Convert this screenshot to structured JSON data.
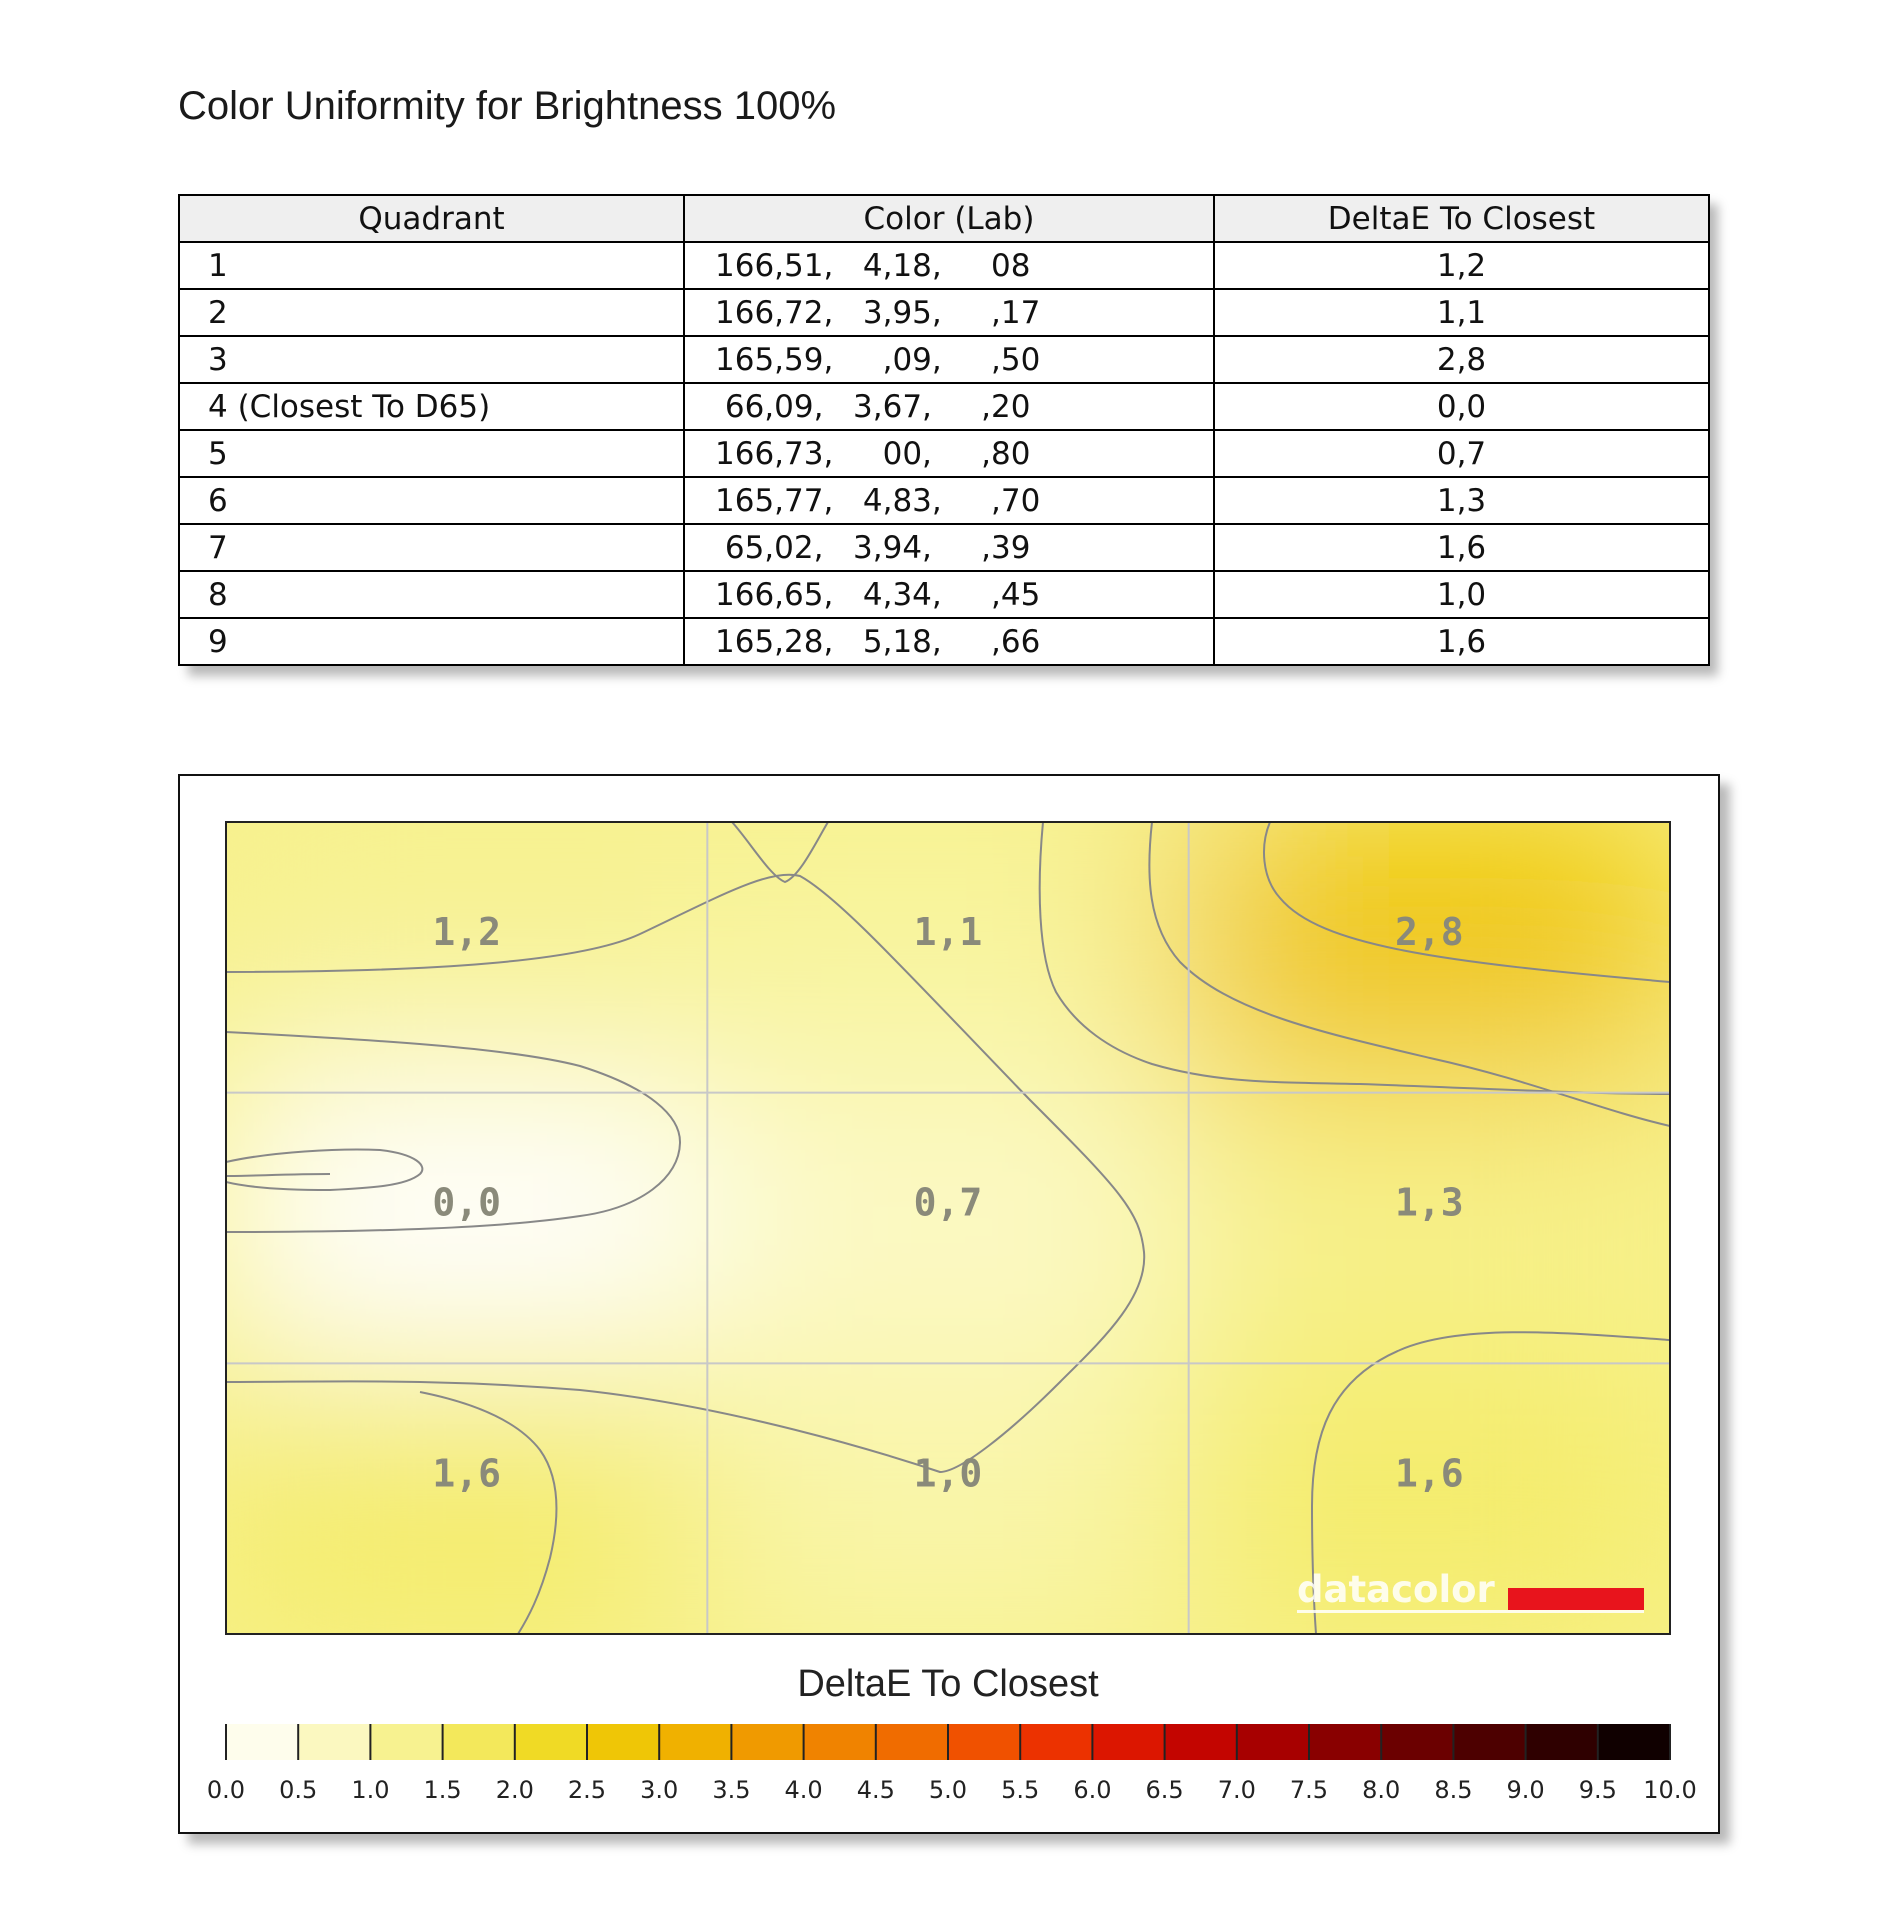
{
  "title": "Color Uniformity for Brightness 100%",
  "table": {
    "headers": [
      "Quadrant",
      "Color (Lab)",
      "DeltaE To Closest"
    ],
    "rows": [
      {
        "quadrant": "1",
        "lab": "166,51,   4,18,     08",
        "deltae": "1,2"
      },
      {
        "quadrant": "2",
        "lab": "166,72,   3,95,     ,17",
        "deltae": "1,1"
      },
      {
        "quadrant": "3",
        "lab": "165,59,     ,09,     ,50",
        "deltae": "2,8"
      },
      {
        "quadrant": "4 (Closest To D65)",
        "lab": " 66,09,   3,67,     ,20",
        "deltae": "0,0"
      },
      {
        "quadrant": "5",
        "lab": "166,73,     00,     ,80",
        "deltae": "0,7"
      },
      {
        "quadrant": "6",
        "lab": "165,77,   4,83,     ,70",
        "deltae": "1,3"
      },
      {
        "quadrant": "7",
        "lab": " 65,02,   3,94,     ,39",
        "deltae": "1,6"
      },
      {
        "quadrant": "8",
        "lab": "166,65,   4,34,     ,45",
        "deltae": "1,0"
      },
      {
        "quadrant": "9",
        "lab": "165,28,   5,18,     ,66",
        "deltae": "1,6"
      }
    ]
  },
  "chart_data": {
    "type": "heatmap",
    "grid": {
      "rows": 3,
      "cols": 3
    },
    "cells": [
      {
        "row": 0,
        "col": 0,
        "value": 1.2,
        "label": "1,2"
      },
      {
        "row": 0,
        "col": 1,
        "value": 1.1,
        "label": "1,1"
      },
      {
        "row": 0,
        "col": 2,
        "value": 2.8,
        "label": "2,8"
      },
      {
        "row": 1,
        "col": 0,
        "value": 0.0,
        "label": "0,0"
      },
      {
        "row": 1,
        "col": 1,
        "value": 0.7,
        "label": "0,7"
      },
      {
        "row": 1,
        "col": 2,
        "value": 1.3,
        "label": "1,3"
      },
      {
        "row": 2,
        "col": 0,
        "value": 1.6,
        "label": "1,6"
      },
      {
        "row": 2,
        "col": 1,
        "value": 1.0,
        "label": "1,0"
      },
      {
        "row": 2,
        "col": 2,
        "value": 1.6,
        "label": "1,6"
      }
    ],
    "logo_text": "datacolor",
    "colorbar": {
      "title": "DeltaE To Closest",
      "range": [
        0,
        10
      ],
      "ticks": [
        "0.0",
        "0.5",
        "1.0",
        "1.5",
        "2.0",
        "2.5",
        "3.0",
        "3.5",
        "4.0",
        "4.5",
        "5.0",
        "5.5",
        "6.0",
        "6.5",
        "7.0",
        "7.5",
        "8.0",
        "8.5",
        "9.0",
        "9.5",
        "10.0"
      ],
      "colors": [
        "#ffffff",
        "#fdfbd8",
        "#f9f5a8",
        "#f5ee78",
        "#f1e23e",
        "#efd10c",
        "#efbb00",
        "#f0a600",
        "#f08e00",
        "#f07800",
        "#f06000",
        "#f04200",
        "#e82200",
        "#d00a00",
        "#b60000",
        "#980000",
        "#7a0000",
        "#5c0000",
        "#3e0000",
        "#200000",
        "#000000"
      ]
    },
    "grid_color": "#c8c8c8",
    "contour_color": "#888888"
  }
}
